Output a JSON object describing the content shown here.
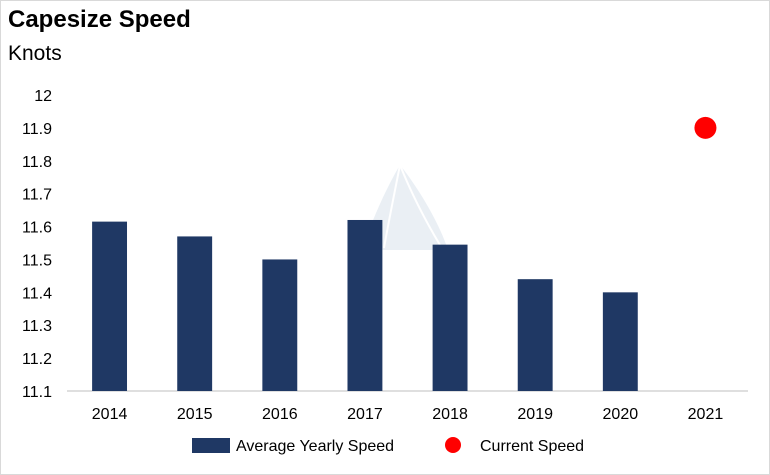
{
  "header": {
    "title": "Capesize Speed",
    "subtitle": "Knots"
  },
  "chart_data": {
    "type": "bar",
    "title": "Capesize Speed",
    "ylabel": "Knots",
    "xlabel": "",
    "categories": [
      "2014",
      "2015",
      "2016",
      "2017",
      "2018",
      "2019",
      "2020",
      "2021"
    ],
    "series": [
      {
        "name": "Average Yearly Speed",
        "kind": "bar",
        "color": "#1f3864",
        "values": [
          11.615,
          11.57,
          11.5,
          11.62,
          11.545,
          11.44,
          11.4,
          null
        ]
      },
      {
        "name": "Current Speed",
        "kind": "point",
        "color": "#ff0000",
        "values": [
          null,
          null,
          null,
          null,
          null,
          null,
          null,
          11.9
        ]
      }
    ],
    "ylim": [
      11.1,
      12.0
    ],
    "yticks": [
      "11.1",
      "11.2",
      "11.3",
      "11.4",
      "11.5",
      "11.6",
      "11.7",
      "11.8",
      "11.9",
      "12"
    ],
    "grid": false,
    "legend_position": "bottom"
  }
}
